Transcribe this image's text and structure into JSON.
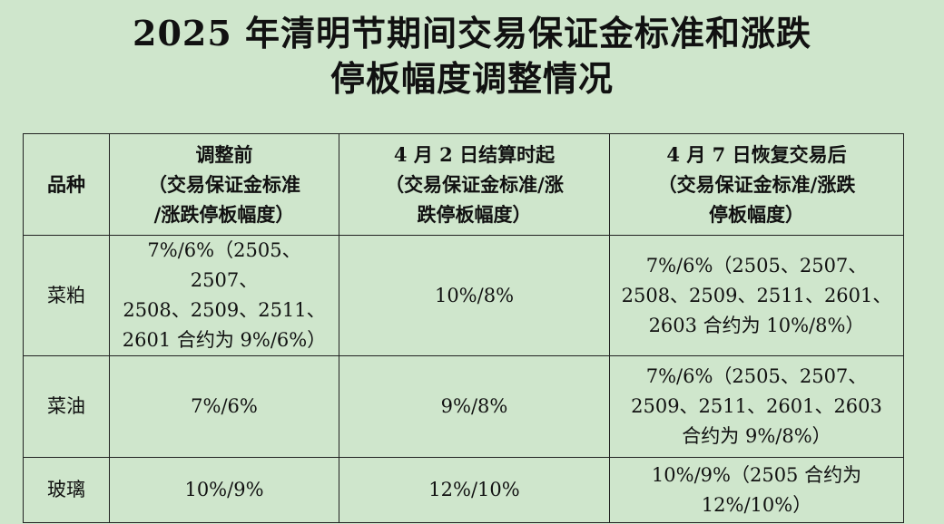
{
  "title": {
    "line1": "2025 年清明节期间交易保证金标准和涨跌",
    "line2": "停板幅度调整情况"
  },
  "table": {
    "headers": {
      "variety": "品种",
      "before": "调整前\n（交易保证金标准\n/涨跌停板幅度）",
      "apr2": "4 月 2 日结算时起\n（交易保证金标准/涨\n跌停板幅度）",
      "apr7": "4 月 7 日恢复交易后\n（交易保证金标准/涨跌\n停板幅度）"
    },
    "rows": [
      {
        "variety": "菜粕",
        "before": "7%/6%（2505、2507、\n2508、2509、2511、\n2601 合约为 9%/6%）",
        "apr2": "10%/8%",
        "apr7": "7%/6%（2505、2507、\n2508、2509、2511、2601、\n2603 合约为 10%/8%）"
      },
      {
        "variety": "菜油",
        "before": "7%/6%",
        "apr2": "9%/8%",
        "apr7": "7%/6%（2505、2507、\n2509、2511、2601、2603\n合约为 9%/8%）"
      },
      {
        "variety": "玻璃",
        "before": "10%/9%",
        "apr2": "12%/10%",
        "apr7": "10%/9%（2505 合约为\n12%/10%）"
      }
    ]
  }
}
